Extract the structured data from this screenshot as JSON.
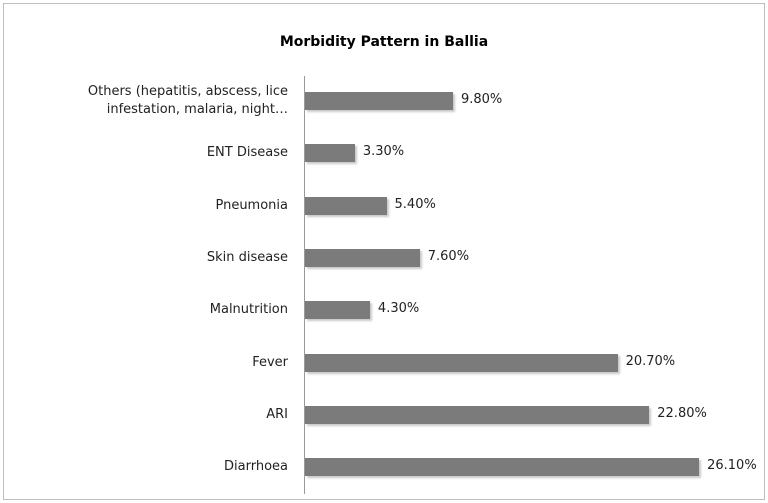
{
  "chart_data": {
    "type": "bar",
    "orientation": "horizontal",
    "title": "Morbidity Pattern in Ballia",
    "categories": [
      "Others (hepatitis, abscess, lice infestation, malaria, night…",
      "ENT Disease",
      "Pneumonia",
      "Skin disease",
      "Malnutrition",
      "Fever",
      "ARI",
      "Diarrhoea"
    ],
    "values": [
      9.8,
      3.3,
      5.4,
      7.6,
      4.3,
      20.7,
      22.8,
      26.1
    ],
    "value_labels": [
      "9.80%",
      "3.30%",
      "5.40%",
      "7.60%",
      "4.30%",
      "20.70%",
      "22.80%",
      "26.10%"
    ],
    "color": "#7b7b7b"
  }
}
